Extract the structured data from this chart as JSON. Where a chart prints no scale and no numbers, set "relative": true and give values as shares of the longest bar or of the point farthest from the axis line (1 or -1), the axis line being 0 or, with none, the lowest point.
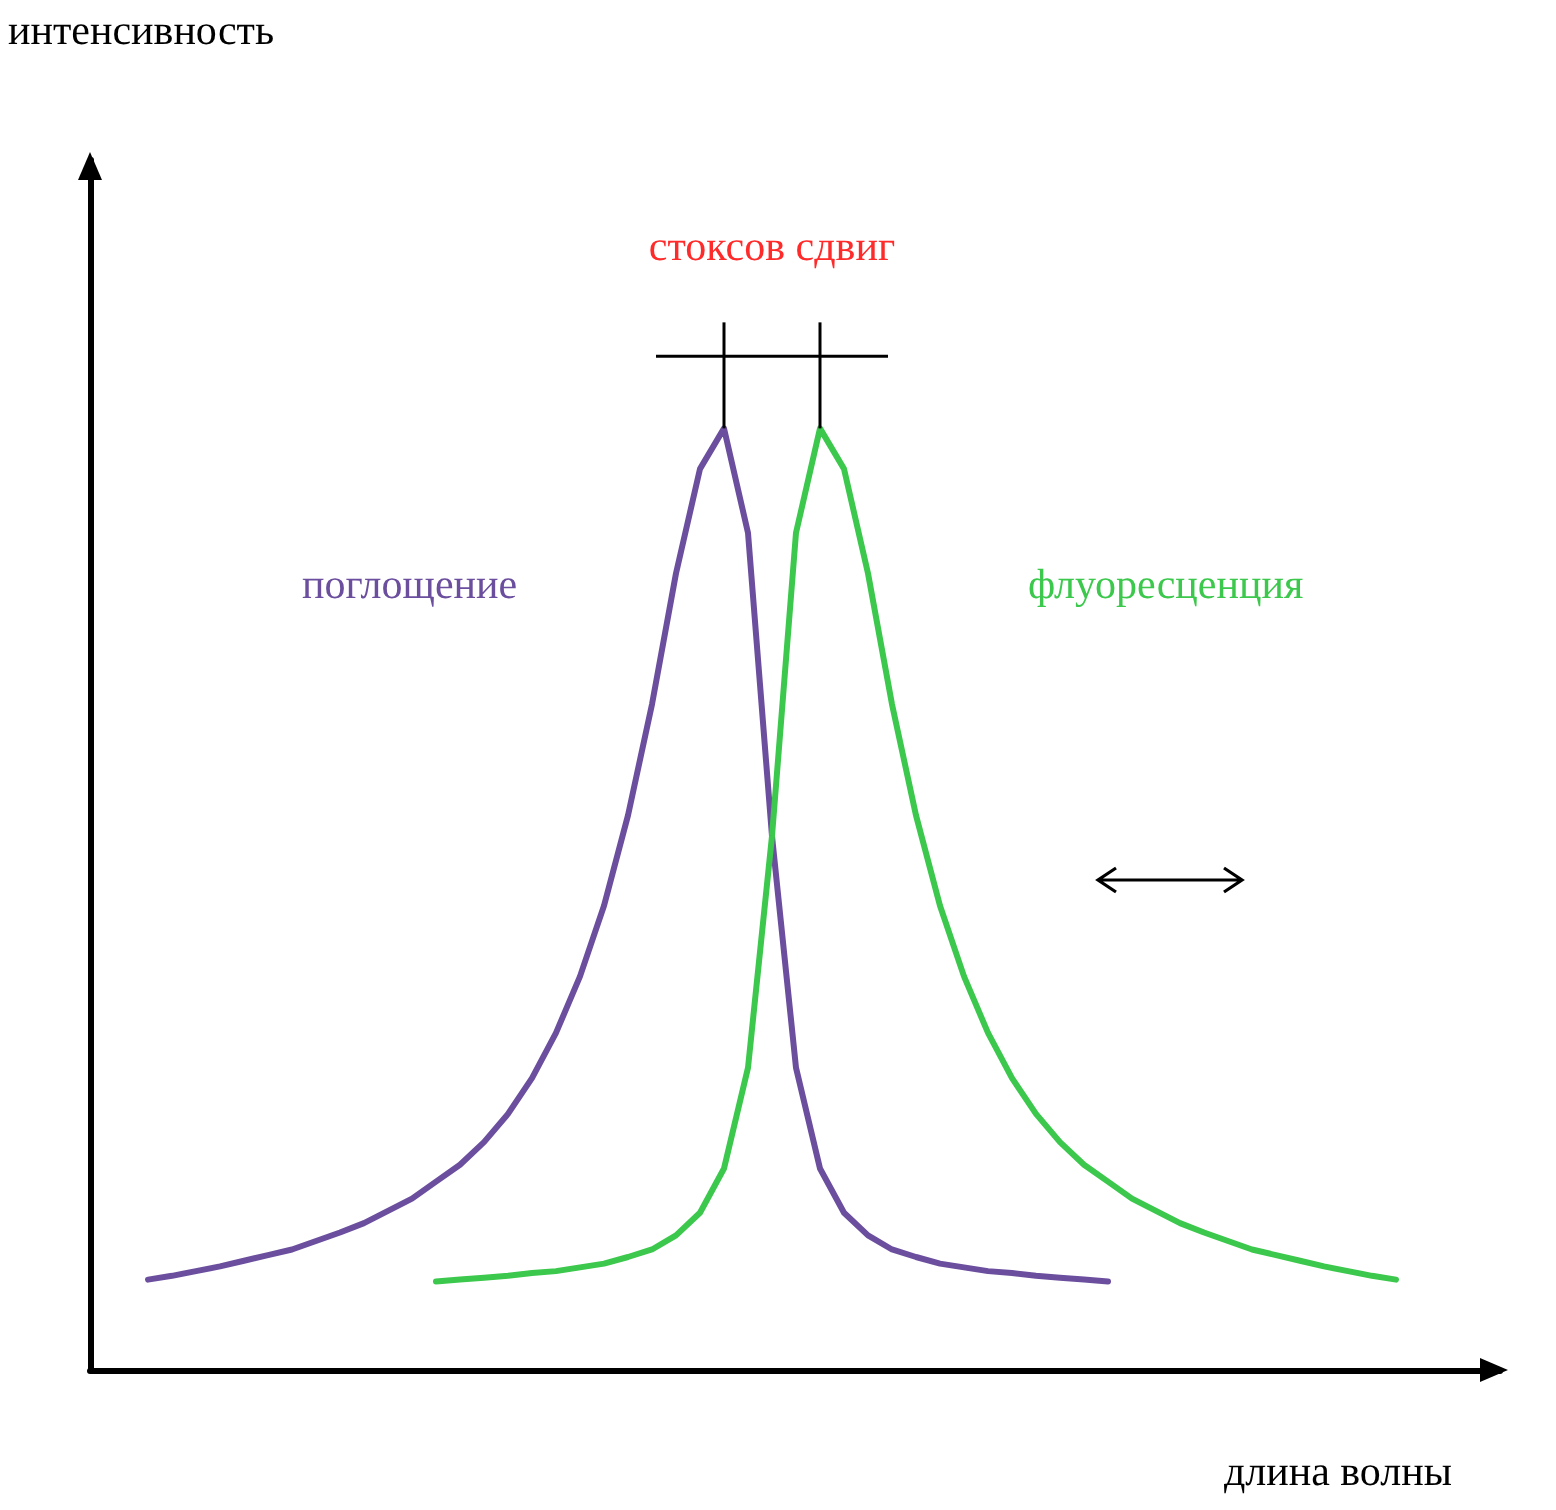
{
  "chart_data": {
    "type": "line",
    "relative": true,
    "xlabel": "длина волны",
    "annotations": [
      "интенсивность",
      "стоксов сдвиг"
    ],
    "grid": false,
    "legend": false,
    "marker": "none",
    "line_style": "solid",
    "categories": [
      null,
      null,
      null,
      null,
      null,
      null,
      null,
      null,
      null,
      null,
      null,
      null,
      null,
      null,
      null,
      null,
      null,
      null,
      null,
      null,
      null,
      null,
      null,
      null,
      null,
      null,
      null,
      null,
      null,
      null,
      null,
      null,
      null,
      null,
      null,
      null,
      null,
      null,
      null,
      null,
      null,
      null,
      null,
      null,
      null,
      null,
      null,
      null,
      null,
      null,
      null,
      null,
      null
    ],
    "series": [
      {
        "name": "поглощение",
        "color": "#6b4f9e",
        "values": [
          0.096,
          0.1,
          0.105,
          0.11,
          0.116,
          0.122,
          0.128,
          0.137,
          0.146,
          0.156,
          0.169,
          0.182,
          0.2,
          0.218,
          0.242,
          0.272,
          0.31,
          0.358,
          0.418,
          0.493,
          0.589,
          0.707,
          0.846,
          0.957,
          1,
          0.889,
          0.567,
          0.321,
          0.214,
          0.167,
          0.143,
          0.128,
          0.12,
          0.113,
          0.109,
          0.105,
          0.103,
          0.1,
          0.098,
          0.096,
          0.094,
          null,
          null,
          null,
          null,
          null,
          null,
          null,
          null,
          null,
          null,
          null,
          null
        ]
      },
      {
        "name": "флуоресценция",
        "color": "#3cc84c",
        "values": [
          null,
          null,
          null,
          null,
          null,
          null,
          null,
          null,
          null,
          null,
          null,
          null,
          0.094,
          0.096,
          0.098,
          0.1,
          0.103,
          0.105,
          0.109,
          0.113,
          0.12,
          0.128,
          0.143,
          0.167,
          0.214,
          0.321,
          0.567,
          0.889,
          1,
          0.957,
          0.846,
          0.707,
          0.589,
          0.493,
          0.418,
          0.358,
          0.31,
          0.272,
          0.242,
          0.218,
          0.2,
          0.182,
          0.169,
          0.156,
          0.146,
          0.137,
          0.128,
          0.122,
          0.116,
          0.11,
          0.105,
          0.1,
          0.096
        ]
      }
    ]
  }
}
